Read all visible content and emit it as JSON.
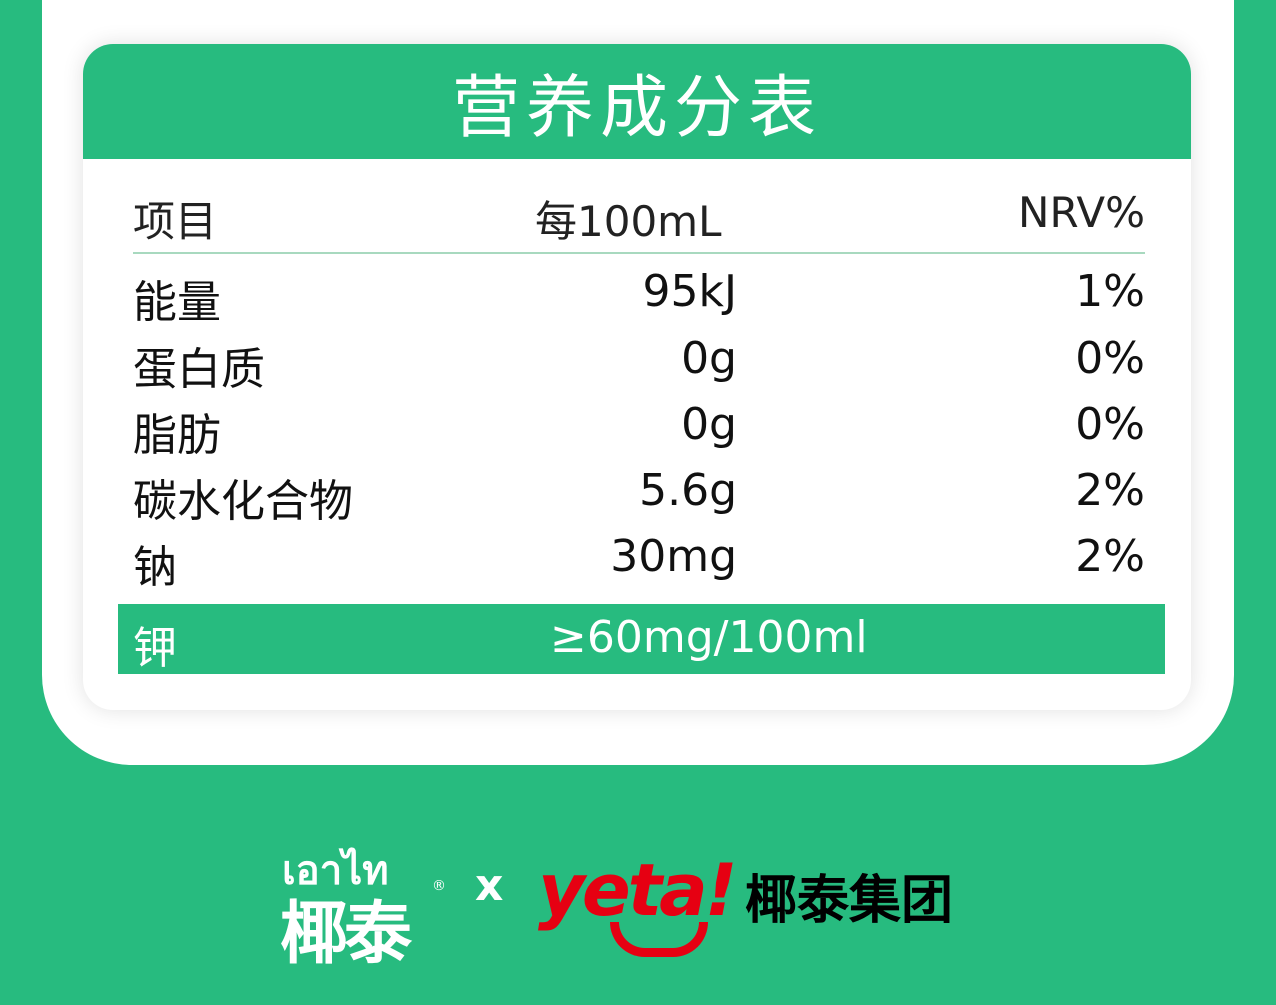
{
  "title": "营养成分表",
  "headers": [
    "项目",
    "每100mL",
    "NRV%"
  ],
  "rows": [
    [
      "能量",
      "95kJ",
      "1%"
    ],
    [
      "蛋白质",
      "0g",
      "0%"
    ],
    [
      "脂肪",
      "0g",
      "0%"
    ],
    [
      "碳水化合物",
      "5.6g",
      "2%"
    ],
    [
      "钠",
      "30mg",
      "2%"
    ]
  ],
  "highlight": [
    "钾",
    "≥60mg/100ml"
  ],
  "brand": {
    "thai": "เอาไท",
    "cn": "椰泰",
    "reg": "®",
    "x": "x",
    "yeta": "yeta!",
    "group": "椰泰集团"
  },
  "colors": {
    "green": "#27bb7f",
    "red": "#e60012"
  }
}
